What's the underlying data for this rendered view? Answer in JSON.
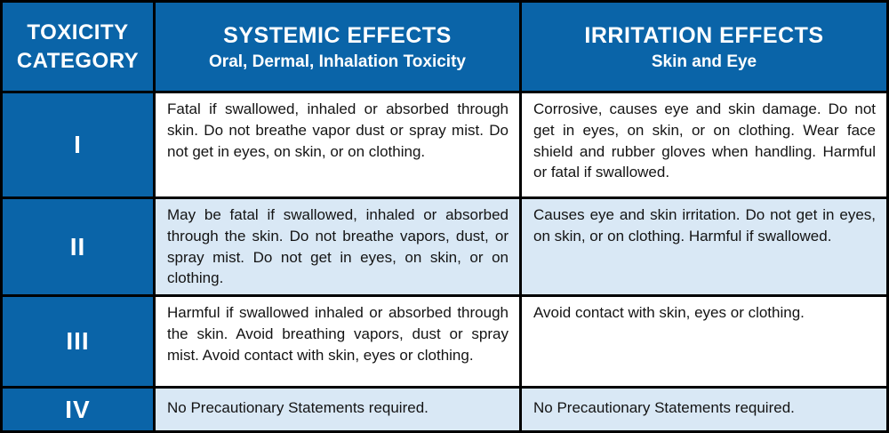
{
  "table": {
    "header": {
      "category": {
        "title": "TOXICITY CATEGORY"
      },
      "systemic": {
        "title": "SYSTEMIC EFFECTS",
        "subtitle": "Oral, Dermal, Inhalation Toxicity"
      },
      "irritation": {
        "title": "IRRITATION EFFECTS",
        "subtitle": "Skin and Eye"
      }
    },
    "rows": [
      {
        "category": "I",
        "systemic": "Fatal if swallowed, inhaled or absorbed through skin. Do not breathe vapor dust or spray mist. Do not get in eyes, on skin, or on clothing.",
        "irritation": "Corrosive, causes eye and skin damage. Do not get in eyes, on skin, or on clothing. Wear face shield and rubber gloves when handling. Harmful or fatal if swallowed."
      },
      {
        "category": "II",
        "systemic": "May be fatal if swallowed, inhaled or absorbed through the skin. Do not breathe vapors, dust, or spray mist. Do not get in eyes, on skin, or on clothing.",
        "irritation": "Causes eye and skin irritation. Do not get in eyes, on skin, or on clothing. Harmful if swallowed."
      },
      {
        "category": "III",
        "systemic": "Harmful if swallowed inhaled or absorbed through the skin. Avoid breathing vapors, dust or spray mist. Avoid contact with skin, eyes or clothing.",
        "irritation": "Avoid contact with skin, eyes or clothing."
      },
      {
        "category": "IV",
        "systemic": "No Precautionary Statements required.",
        "irritation": "No Precautionary Statements required."
      }
    ]
  },
  "colors": {
    "header_blue": "#0A64A8",
    "row_alt_light_blue": "#D9E8F5",
    "row_white": "#FFFFFF",
    "border_black": "#000000",
    "header_text": "#FFFFFF",
    "body_text": "#141414"
  }
}
